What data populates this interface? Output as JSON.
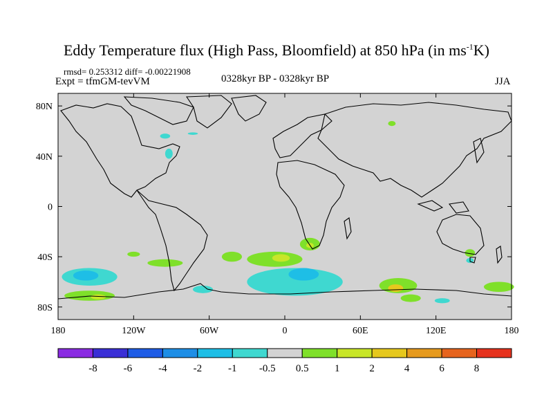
{
  "title": {
    "main": "Eddy Temperature flux (High Pass, Bloomfield) at 850 hPa (in ms",
    "sup": "-1",
    "end": "K)"
  },
  "stats": "rmsd= 0.253312 diff= -0.00221908",
  "experiment": "Expt = tfmGM-tevVM",
  "period": "0328kyr BP - 0328kyr BP",
  "season": "JJA",
  "map": {
    "projection": "equirectangular",
    "lon_range": [
      -180,
      180
    ],
    "lat_range": [
      -90,
      90
    ],
    "background": "#d3d3d3",
    "x_ticks": [
      {
        "lon": -180,
        "label": "180"
      },
      {
        "lon": -120,
        "label": "120W"
      },
      {
        "lon": -60,
        "label": "60W"
      },
      {
        "lon": 0,
        "label": "0"
      },
      {
        "lon": 60,
        "label": "60E"
      },
      {
        "lon": 120,
        "label": "120E"
      },
      {
        "lon": 180,
        "label": "180"
      }
    ],
    "y_ticks": [
      {
        "lat": 80,
        "label": "80N"
      },
      {
        "lat": 40,
        "label": "40N"
      },
      {
        "lat": 0,
        "label": "0"
      },
      {
        "lat": -40,
        "label": "40S"
      },
      {
        "lat": -80,
        "label": "80S"
      }
    ]
  },
  "colorbar": {
    "colors": [
      "#8a2be2",
      "#3a2fd6",
      "#1e5ce6",
      "#1e8ee6",
      "#1ebee6",
      "#3fd8d0",
      "#d3d3d3",
      "#7fe02a",
      "#c8e628",
      "#e6c81e",
      "#e69a1e",
      "#e6641e",
      "#e6321e"
    ],
    "labels": [
      "-8",
      "-6",
      "-4",
      "-2",
      "-1",
      "-0.5",
      "0.5",
      "1",
      "2",
      "4",
      "6",
      "8"
    ]
  },
  "anomalies": [
    {
      "label": "Eastern North America negative",
      "color": "#3fd8d0",
      "lon": -92,
      "lat": 42,
      "rx": 3,
      "ry": 4
    },
    {
      "label": "Hudson Bay area negative",
      "color": "#3fd8d0",
      "lon": -95,
      "lat": 56,
      "rx": 4,
      "ry": 2
    },
    {
      "label": "Canada small negative",
      "color": "#3fd8d0",
      "lon": -73,
      "lat": 58,
      "rx": 4,
      "ry": 1
    },
    {
      "label": "Siberia small positive",
      "color": "#7fe02a",
      "lon": 85,
      "lat": 66,
      "rx": 3,
      "ry": 2
    },
    {
      "label": "South Atlantic positive",
      "color": "#7fe02a",
      "lon": -8,
      "lat": -42,
      "rx": 22,
      "ry": 6
    },
    {
      "label": "South Atlantic core",
      "color": "#c8e628",
      "lon": -3,
      "lat": -41,
      "rx": 7,
      "ry": 3
    },
    {
      "label": "South Africa positive",
      "color": "#7fe02a",
      "lon": 20,
      "lat": -30,
      "rx": 8,
      "ry": 5
    },
    {
      "label": "South Africa core",
      "color": "#c8e628",
      "lon": 20,
      "lat": -31,
      "rx": 3,
      "ry": 2
    },
    {
      "label": "South Indian Ocean negative",
      "color": "#3fd8d0",
      "lon": 8,
      "lat": -60,
      "rx": 38,
      "ry": 11
    },
    {
      "label": "South Indian Ocean negative core",
      "color": "#1ebee6",
      "lon": 15,
      "lat": -54,
      "rx": 12,
      "ry": 5
    },
    {
      "label": "South Pacific negative",
      "color": "#3fd8d0",
      "lon": -155,
      "lat": -56,
      "rx": 22,
      "ry": 7
    },
    {
      "label": "South Pacific negative core",
      "color": "#1ebee6",
      "lon": -158,
      "lat": -55,
      "rx": 10,
      "ry": 4
    },
    {
      "label": "South Pacific positive",
      "color": "#7fe02a",
      "lon": -155,
      "lat": -71,
      "rx": 20,
      "ry": 4
    },
    {
      "label": "South Pacific positive core",
      "color": "#c8e628",
      "lon": -148,
      "lat": -72,
      "rx": 6,
      "ry": 2
    },
    {
      "label": "South Pacific center",
      "color": "#7fe02a",
      "lon": -95,
      "lat": -45,
      "rx": 14,
      "ry": 3
    },
    {
      "label": "Southeast Pacific small",
      "color": "#7fe02a",
      "lon": -120,
      "lat": -38,
      "rx": 5,
      "ry": 2
    },
    {
      "label": "Southern Ocean positive",
      "color": "#7fe02a",
      "lon": 90,
      "lat": -63,
      "rx": 15,
      "ry": 6
    },
    {
      "label": "Southern Ocean positive core",
      "color": "#e6c81e",
      "lon": 88,
      "lat": -65,
      "rx": 6,
      "ry": 3
    },
    {
      "label": "Australia positive",
      "color": "#7fe02a",
      "lon": 147,
      "lat": -37,
      "rx": 4,
      "ry": 3
    },
    {
      "label": "Australia negative",
      "color": "#3fd8d0",
      "lon": 147,
      "lat": -43,
      "rx": 3,
      "ry": 2
    },
    {
      "label": "Tasman positive",
      "color": "#7fe02a",
      "lon": 170,
      "lat": -64,
      "rx": 12,
      "ry": 4
    },
    {
      "label": "Pacific south negative",
      "color": "#3fd8d0",
      "lon": -65,
      "lat": -66,
      "rx": 8,
      "ry": 3
    },
    {
      "label": "Drake Passage positive",
      "color": "#7fe02a",
      "lon": -42,
      "lat": -40,
      "rx": 8,
      "ry": 4
    },
    {
      "label": "Indian Ocean small negative",
      "color": "#3fd8d0",
      "lon": 125,
      "lat": -75,
      "rx": 6,
      "ry": 2
    },
    {
      "label": "Antarctic Peninsula positive",
      "color": "#7fe02a",
      "lon": 100,
      "lat": -73,
      "rx": 8,
      "ry": 3
    }
  ]
}
